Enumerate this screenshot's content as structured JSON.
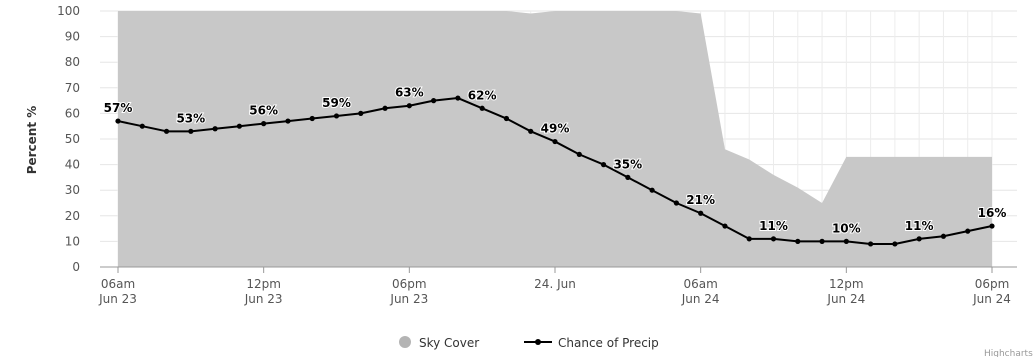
{
  "chart_data": {
    "type": "area+line",
    "ylabel": "Percent %",
    "ylim": [
      0,
      100
    ],
    "yticks": [
      0,
      10,
      20,
      30,
      40,
      50,
      60,
      70,
      80,
      90,
      100
    ],
    "grid": true,
    "legend_position": "bottom-center",
    "x_ticks": [
      {
        "hour": 0,
        "line1": "06am",
        "line2": "Jun 23"
      },
      {
        "hour": 6,
        "line1": "12pm",
        "line2": "Jun 23"
      },
      {
        "hour": 12,
        "line1": "06pm",
        "line2": "Jun 23"
      },
      {
        "hour": 18,
        "line1": "24. Jun",
        "line2": ""
      },
      {
        "hour": 24,
        "line1": "06am",
        "line2": "Jun 24"
      },
      {
        "hour": 30,
        "line1": "12pm",
        "line2": "Jun 24"
      },
      {
        "hour": 36,
        "line1": "06pm",
        "line2": "Jun 24"
      }
    ],
    "series": [
      {
        "name": "Sky Cover",
        "type": "area",
        "color": "#c8c8c8",
        "points": [
          [
            0,
            100
          ],
          [
            1,
            100
          ],
          [
            2,
            100
          ],
          [
            3,
            100
          ],
          [
            4,
            100
          ],
          [
            5,
            100
          ],
          [
            6,
            100
          ],
          [
            7,
            100
          ],
          [
            8,
            100
          ],
          [
            9,
            100
          ],
          [
            10,
            100
          ],
          [
            11,
            100
          ],
          [
            12,
            100
          ],
          [
            13,
            100
          ],
          [
            14,
            100
          ],
          [
            15,
            100
          ],
          [
            16,
            100
          ],
          [
            17,
            99
          ],
          [
            18,
            100
          ],
          [
            19,
            100
          ],
          [
            20,
            100
          ],
          [
            21,
            100
          ],
          [
            22,
            100
          ],
          [
            23,
            100
          ],
          [
            24,
            99
          ],
          [
            25,
            46
          ],
          [
            26,
            42
          ],
          [
            27,
            36
          ],
          [
            28,
            31
          ],
          [
            29,
            25
          ],
          [
            30,
            43
          ],
          [
            31,
            43
          ],
          [
            32,
            43
          ],
          [
            33,
            43
          ],
          [
            34,
            43
          ],
          [
            35,
            43
          ],
          [
            36,
            43
          ]
        ]
      },
      {
        "name": "Chance of Precip",
        "type": "line",
        "color": "#000000",
        "points": [
          [
            0,
            57
          ],
          [
            1,
            55
          ],
          [
            2,
            53
          ],
          [
            3,
            53
          ],
          [
            4,
            54
          ],
          [
            5,
            55
          ],
          [
            6,
            56
          ],
          [
            7,
            57
          ],
          [
            8,
            58
          ],
          [
            9,
            59
          ],
          [
            10,
            60
          ],
          [
            11,
            62
          ],
          [
            12,
            63
          ],
          [
            13,
            65
          ],
          [
            14,
            66
          ],
          [
            15,
            62
          ],
          [
            16,
            58
          ],
          [
            17,
            53
          ],
          [
            18,
            49
          ],
          [
            19,
            44
          ],
          [
            20,
            40
          ],
          [
            21,
            35
          ],
          [
            22,
            30
          ],
          [
            23,
            25
          ],
          [
            24,
            21
          ],
          [
            25,
            16
          ],
          [
            26,
            11
          ],
          [
            27,
            11
          ],
          [
            28,
            10
          ],
          [
            29,
            10
          ],
          [
            30,
            10
          ],
          [
            31,
            9
          ],
          [
            32,
            9
          ],
          [
            33,
            11
          ],
          [
            34,
            12
          ],
          [
            35,
            14
          ],
          [
            36,
            16
          ]
        ]
      }
    ],
    "data_labels": [
      {
        "hour": 0,
        "text": "57%"
      },
      {
        "hour": 3,
        "text": "53%"
      },
      {
        "hour": 6,
        "text": "56%"
      },
      {
        "hour": 9,
        "text": "59%"
      },
      {
        "hour": 12,
        "text": "63%"
      },
      {
        "hour": 15,
        "text": "62%"
      },
      {
        "hour": 18,
        "text": "49%"
      },
      {
        "hour": 21,
        "text": "35%"
      },
      {
        "hour": 24,
        "text": "21%"
      },
      {
        "hour": 27,
        "text": "11%"
      },
      {
        "hour": 30,
        "text": "10%"
      },
      {
        "hour": 33,
        "text": "11%"
      },
      {
        "hour": 36,
        "text": "16%"
      }
    ],
    "credit": "Highcharts"
  }
}
